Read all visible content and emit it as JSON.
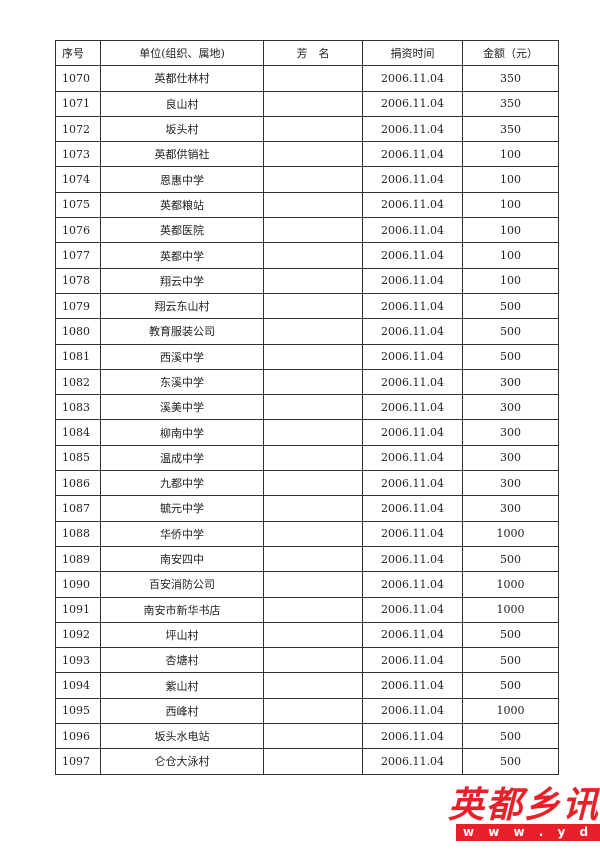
{
  "headers": {
    "no": "序号",
    "unit": "单位(组织、属地)",
    "name": "芳　名",
    "date": "捐资时间",
    "amount": "金额（元）"
  },
  "rows": [
    {
      "no": "1070",
      "unit": "英都仕林村",
      "name": "",
      "date": "2006.11.04",
      "amount": "350"
    },
    {
      "no": "1071",
      "unit": "良山村",
      "name": "",
      "date": "2006.11.04",
      "amount": "350"
    },
    {
      "no": "1072",
      "unit": "坂头村",
      "name": "",
      "date": "2006.11.04",
      "amount": "350"
    },
    {
      "no": "1073",
      "unit": "英都供销社",
      "name": "",
      "date": "2006.11.04",
      "amount": "100"
    },
    {
      "no": "1074",
      "unit": "恩惠中学",
      "name": "",
      "date": "2006.11.04",
      "amount": "100"
    },
    {
      "no": "1075",
      "unit": "英都粮站",
      "name": "",
      "date": "2006.11.04",
      "amount": "100"
    },
    {
      "no": "1076",
      "unit": "英都医院",
      "name": "",
      "date": "2006.11.04",
      "amount": "100"
    },
    {
      "no": "1077",
      "unit": "英都中学",
      "name": "",
      "date": "2006.11.04",
      "amount": "100"
    },
    {
      "no": "1078",
      "unit": "翔云中学",
      "name": "",
      "date": "2006.11.04",
      "amount": "100"
    },
    {
      "no": "1079",
      "unit": "翔云东山村",
      "name": "",
      "date": "2006.11.04",
      "amount": "500"
    },
    {
      "no": "1080",
      "unit": "教育服装公司",
      "name": "",
      "date": "2006.11.04",
      "amount": "500"
    },
    {
      "no": "1081",
      "unit": "西溪中学",
      "name": "",
      "date": "2006.11.04",
      "amount": "500"
    },
    {
      "no": "1082",
      "unit": "东溪中学",
      "name": "",
      "date": "2006.11.04",
      "amount": "300"
    },
    {
      "no": "1083",
      "unit": "溪美中学",
      "name": "",
      "date": "2006.11.04",
      "amount": "300"
    },
    {
      "no": "1084",
      "unit": "柳南中学",
      "name": "",
      "date": "2006.11.04",
      "amount": "300"
    },
    {
      "no": "1085",
      "unit": "温成中学",
      "name": "",
      "date": "2006.11.04",
      "amount": "300"
    },
    {
      "no": "1086",
      "unit": "九都中学",
      "name": "",
      "date": "2006.11.04",
      "amount": "300"
    },
    {
      "no": "1087",
      "unit": "毓元中学",
      "name": "",
      "date": "2006.11.04",
      "amount": "300"
    },
    {
      "no": "1088",
      "unit": "华侨中学",
      "name": "",
      "date": "2006.11.04",
      "amount": "1000"
    },
    {
      "no": "1089",
      "unit": "南安四中",
      "name": "",
      "date": "2006.11.04",
      "amount": "500"
    },
    {
      "no": "1090",
      "unit": "百安消防公司",
      "name": "",
      "date": "2006.11.04",
      "amount": "1000"
    },
    {
      "no": "1091",
      "unit": "南安市新华书店",
      "name": "",
      "date": "2006.11.04",
      "amount": "1000"
    },
    {
      "no": "1092",
      "unit": "坪山村",
      "name": "",
      "date": "2006.11.04",
      "amount": "500"
    },
    {
      "no": "1093",
      "unit": "杏塘村",
      "name": "",
      "date": "2006.11.04",
      "amount": "500"
    },
    {
      "no": "1094",
      "unit": "紫山村",
      "name": "",
      "date": "2006.11.04",
      "amount": "500"
    },
    {
      "no": "1095",
      "unit": "西峰村",
      "name": "",
      "date": "2006.11.04",
      "amount": "1000"
    },
    {
      "no": "1096",
      "unit": "坂头水电站",
      "name": "",
      "date": "2006.11.04",
      "amount": "500"
    },
    {
      "no": "1097",
      "unit": "仑仓大泳村",
      "name": "",
      "date": "2006.11.04",
      "amount": "500"
    }
  ],
  "watermark": {
    "title": "英都乡讯",
    "url": "w w w . y d x x . n e t"
  }
}
